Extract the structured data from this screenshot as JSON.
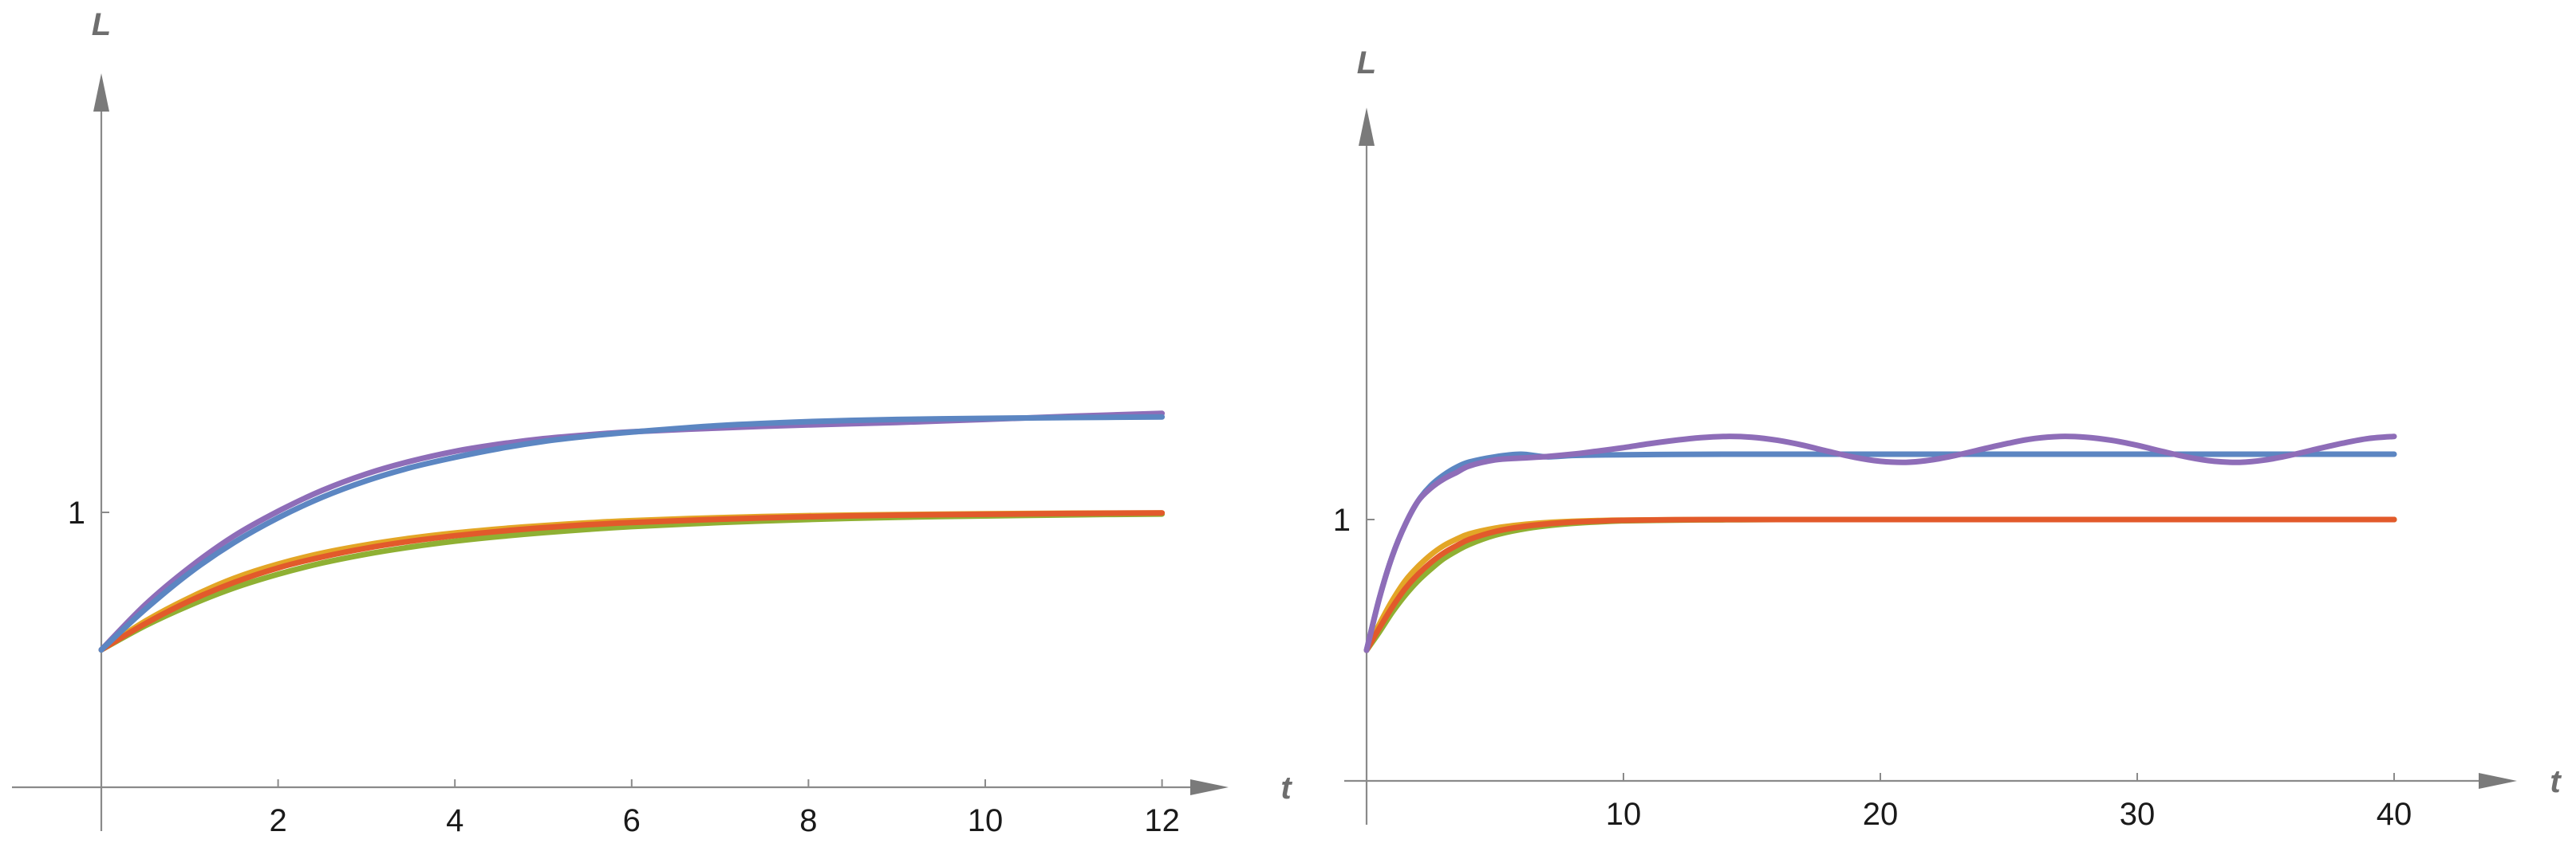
{
  "chart_data": [
    {
      "type": "line",
      "xlabel": "t",
      "ylabel": "L",
      "xlim": [
        -1,
        12.6
      ],
      "ylim": [
        -0.1,
        1.5
      ],
      "xticks": [
        2,
        4,
        6,
        8,
        10,
        12
      ],
      "yticks": [
        1
      ],
      "grid": false,
      "series": [
        {
          "color": "#E3A626",
          "x": [
            0,
            0.5,
            1,
            1.5,
            2,
            2.5,
            3,
            3.5,
            4,
            4.5,
            5,
            5.5,
            6,
            7,
            8,
            9,
            10,
            11,
            12
          ],
          "y": [
            0.5,
            0.605,
            0.69,
            0.76,
            0.812,
            0.852,
            0.882,
            0.906,
            0.925,
            0.94,
            0.952,
            0.962,
            0.97,
            0.981,
            0.988,
            0.992,
            0.995,
            0.997,
            0.998
          ]
        },
        {
          "color": "#8FB033",
          "x": [
            0,
            0.5,
            1,
            1.5,
            2,
            2.5,
            3,
            3.5,
            4,
            4.5,
            5,
            5.5,
            6,
            7,
            8,
            9,
            10,
            11,
            12
          ],
          "y": [
            0.5,
            0.588,
            0.662,
            0.725,
            0.775,
            0.816,
            0.848,
            0.874,
            0.895,
            0.912,
            0.926,
            0.938,
            0.948,
            0.963,
            0.974,
            0.982,
            0.987,
            0.991,
            0.994
          ]
        },
        {
          "color": "#E25A2B",
          "x": [
            0,
            0.5,
            1,
            1.5,
            2,
            2.5,
            3,
            3.5,
            4,
            4.5,
            5,
            5.5,
            6,
            7,
            8,
            9,
            10,
            11,
            12
          ],
          "y": [
            0.5,
            0.596,
            0.678,
            0.745,
            0.798,
            0.838,
            0.87,
            0.895,
            0.915,
            0.931,
            0.944,
            0.955,
            0.963,
            0.975,
            0.984,
            0.99,
            0.993,
            0.996,
            0.998
          ]
        },
        {
          "color": "#8E6DB8",
          "x": [
            0,
            0.5,
            1,
            1.5,
            2,
            2.5,
            3,
            3.5,
            4,
            4.5,
            5,
            5.5,
            6,
            7,
            8,
            9,
            10,
            11,
            12
          ],
          "y": [
            0.5,
            0.665,
            0.8,
            0.914,
            1.004,
            1.08,
            1.14,
            1.186,
            1.222,
            1.248,
            1.268,
            1.282,
            1.293,
            1.307,
            1.318,
            1.327,
            1.338,
            1.35,
            1.36
          ]
        },
        {
          "color": "#5C86C2",
          "x": [
            0,
            0.5,
            1,
            1.5,
            2,
            2.5,
            3,
            3.5,
            4,
            4.5,
            5,
            5.5,
            6,
            7,
            8,
            9,
            10,
            11,
            12
          ],
          "y": [
            0.5,
            0.648,
            0.78,
            0.89,
            0.98,
            1.055,
            1.115,
            1.163,
            1.2,
            1.232,
            1.258,
            1.277,
            1.292,
            1.316,
            1.33,
            1.338,
            1.342,
            1.345,
            1.347
          ]
        }
      ]
    },
    {
      "type": "line",
      "xlabel": "t",
      "ylabel": "L",
      "xlim": [
        -1,
        45
      ],
      "ylim": [
        -0.1,
        1.4
      ],
      "xticks": [
        10,
        20,
        30,
        40
      ],
      "yticks": [
        1
      ],
      "grid": false,
      "series": [
        {
          "color": "#E3A626",
          "x": [
            0,
            0.5,
            1,
            1.5,
            2,
            2.5,
            3,
            3.5,
            4,
            5,
            6,
            7,
            8,
            9,
            10,
            12,
            14,
            16,
            20,
            25,
            30,
            35,
            40
          ],
          "y": [
            0.5,
            0.6,
            0.69,
            0.765,
            0.82,
            0.865,
            0.9,
            0.925,
            0.945,
            0.967,
            0.98,
            0.988,
            0.993,
            0.996,
            0.998,
            0.999,
            1,
            1,
            1,
            1,
            1,
            1,
            1
          ]
        },
        {
          "color": "#8FB033",
          "x": [
            0,
            0.5,
            1,
            1.5,
            2,
            2.5,
            3,
            3.5,
            4,
            5,
            6,
            7,
            8,
            9,
            10,
            12,
            14,
            16,
            20,
            25,
            30,
            35,
            40
          ],
          "y": [
            0.5,
            0.57,
            0.645,
            0.71,
            0.765,
            0.81,
            0.85,
            0.88,
            0.905,
            0.94,
            0.962,
            0.976,
            0.985,
            0.991,
            0.995,
            0.998,
            0.999,
            1,
            1,
            1,
            1,
            1,
            1
          ]
        },
        {
          "color": "#E25A2B",
          "x": [
            0,
            0.5,
            1,
            1.5,
            2,
            2.5,
            3,
            3.5,
            4,
            5,
            6,
            7,
            8,
            9,
            10,
            12,
            14,
            16,
            20,
            25,
            30,
            35,
            40
          ],
          "y": [
            0.5,
            0.585,
            0.665,
            0.735,
            0.79,
            0.835,
            0.872,
            0.9,
            0.924,
            0.954,
            0.972,
            0.983,
            0.99,
            0.994,
            0.997,
            0.999,
            1,
            1,
            1,
            1,
            1,
            1,
            1
          ]
        },
        {
          "color": "#5C86C2",
          "x": [
            0,
            0.5,
            1,
            1.5,
            2,
            2.5,
            3,
            3.5,
            4,
            5,
            6,
            7,
            8,
            9,
            10,
            12,
            14,
            16,
            20,
            25,
            30,
            35,
            40
          ],
          "y": [
            0.5,
            0.7,
            0.86,
            0.98,
            1.07,
            1.13,
            1.17,
            1.2,
            1.22,
            1.24,
            1.25,
            1.24,
            1.245,
            1.247,
            1.248,
            1.249,
            1.25,
            1.25,
            1.25,
            1.25,
            1.25,
            1.25,
            1.25
          ]
        },
        {
          "color": "#8E6DB8",
          "x": [
            0,
            0.5,
            1,
            1.5,
            2,
            2.5,
            3,
            3.5,
            4,
            5,
            6,
            7,
            8,
            9,
            10,
            11,
            12,
            13,
            14,
            15,
            16,
            17,
            18,
            19,
            20,
            21,
            22,
            23,
            24,
            25,
            26,
            27,
            28,
            29,
            30,
            31,
            32,
            33,
            34,
            35,
            36,
            37,
            38,
            39,
            40
          ],
          "y": [
            0.5,
            0.7,
            0.86,
            0.98,
            1.07,
            1.12,
            1.155,
            1.18,
            1.205,
            1.228,
            1.235,
            1.241,
            1.25,
            1.262,
            1.275,
            1.29,
            1.303,
            1.313,
            1.318,
            1.315,
            1.303,
            1.284,
            1.26,
            1.238,
            1.223,
            1.219,
            1.228,
            1.247,
            1.27,
            1.292,
            1.31,
            1.318,
            1.315,
            1.303,
            1.284,
            1.26,
            1.238,
            1.223,
            1.219,
            1.228,
            1.247,
            1.27,
            1.292,
            1.31,
            1.318
          ]
        }
      ]
    }
  ]
}
